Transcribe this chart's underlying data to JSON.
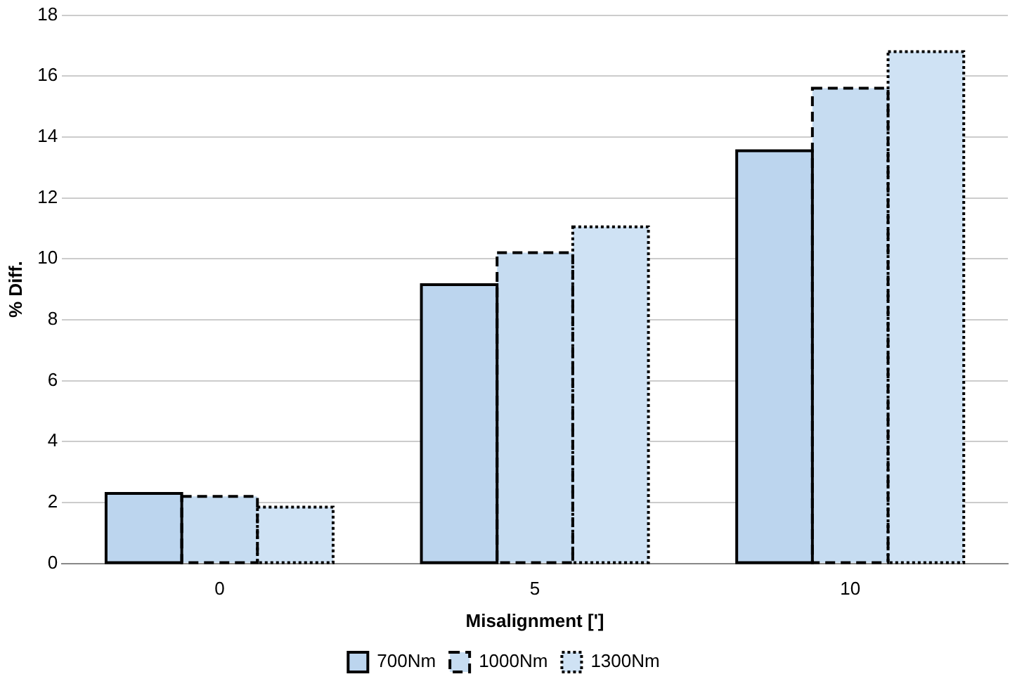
{
  "chart_data": {
    "type": "bar",
    "xlabel": "Misalignment [']",
    "ylabel": "% Diff.",
    "categories": [
      "0",
      "5",
      "10"
    ],
    "series": [
      {
        "name": "700Nm",
        "color": "#bcd5ee",
        "line_style": "solid",
        "values": [
          2.3,
          9.15,
          13.55
        ]
      },
      {
        "name": "1000Nm",
        "color": "#c6dcf1",
        "line_style": "dashed",
        "values": [
          2.2,
          10.2,
          15.6
        ]
      },
      {
        "name": "1300Nm",
        "color": "#cfe2f4",
        "line_style": "dotted",
        "values": [
          1.85,
          11.05,
          16.8
        ]
      }
    ],
    "ylim": [
      0,
      18
    ],
    "yticks": [
      0,
      2,
      4,
      6,
      8,
      10,
      12,
      14,
      16,
      18
    ],
    "grid": "y",
    "legend": "bottom"
  }
}
